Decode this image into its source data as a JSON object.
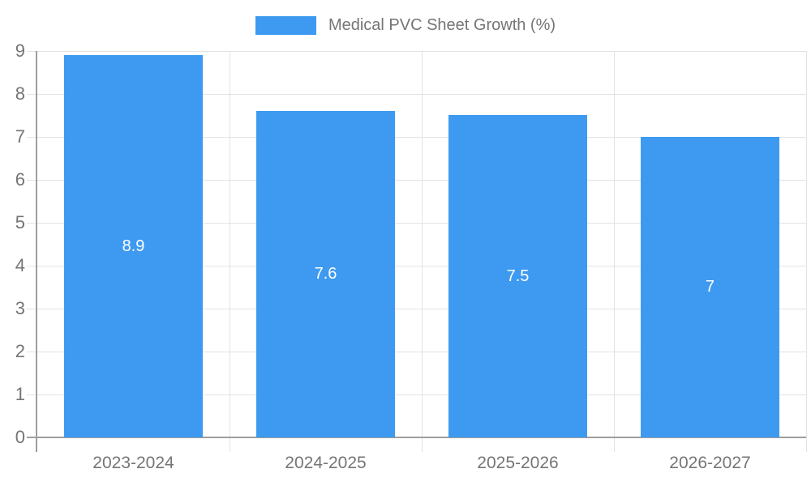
{
  "chart_data": {
    "type": "bar",
    "title": "",
    "legend": {
      "label": "Medical PVC Sheet Growth (%)",
      "position": "top-center"
    },
    "categories": [
      "2023-2024",
      "2024-2025",
      "2025-2026",
      "2026-2027"
    ],
    "values": [
      8.9,
      7.6,
      7.5,
      7
    ],
    "value_labels": [
      "8.9",
      "7.6",
      "7.5",
      "7"
    ],
    "xlabel": "",
    "ylabel": "",
    "ylim": [
      0,
      9
    ],
    "y_ticks": [
      0,
      1,
      2,
      3,
      4,
      5,
      6,
      7,
      8,
      9
    ],
    "grid": "horizontal lines at each integer, vertical lines at category boundaries",
    "legend_position": "top",
    "colors": {
      "bar": "#3d9af0",
      "axis_line": "#9e9e9e",
      "gridline": "#e3e3e3",
      "tick_label": "#757575",
      "bar_label": "#ffffff",
      "background": "#ffffff"
    }
  }
}
